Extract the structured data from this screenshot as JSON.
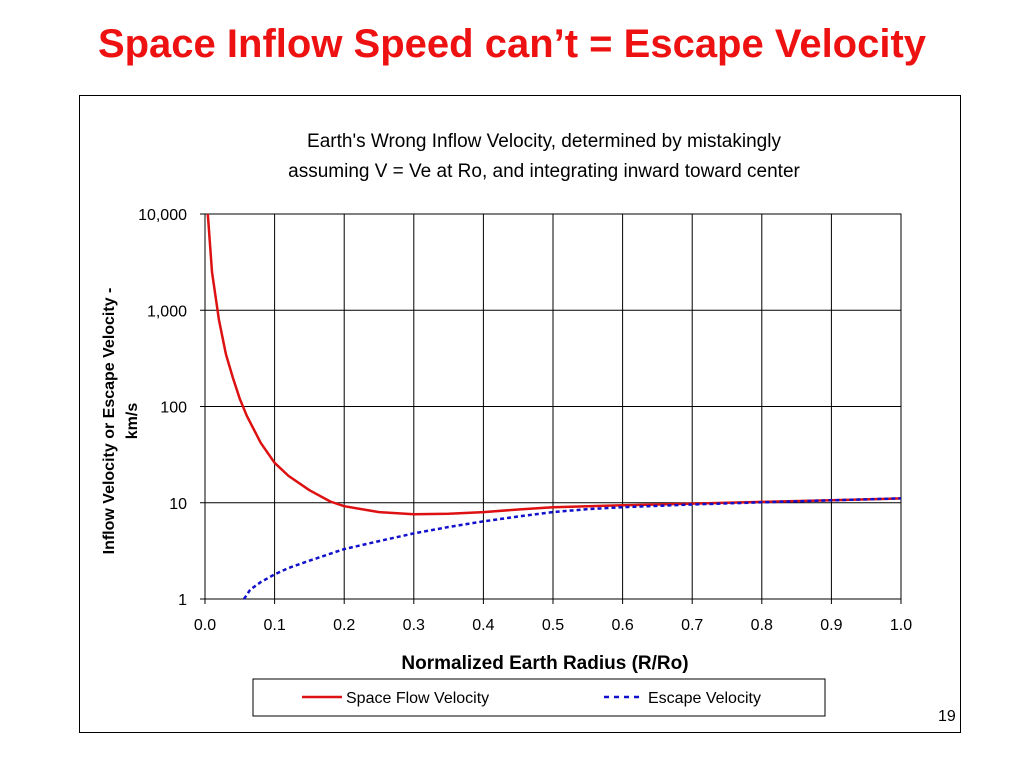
{
  "slide": {
    "title": "Space Inflow Speed can’t = Escape Velocity",
    "page_number": "19"
  },
  "colors": {
    "title": "#ee1111",
    "space_flow": "#dd1111",
    "escape": "#1111cc"
  },
  "chart_data": {
    "type": "line",
    "title": "Earth's Wrong Inflow Velocity, determined by mistakingly assuming V = Ve at Ro, and integrating inward toward center",
    "title_lines": [
      "Earth's Wrong Inflow Velocity, determined by mistakingly",
      "assuming V = Ve at Ro, and integrating inward toward center"
    ],
    "xlabel": "Normalized Earth Radius (R/Ro)",
    "ylabel": "Inflow Velocity or Escape Velocity - km/s",
    "ylabel_lines": [
      "Inflow Velocity or Escape Velocity -",
      "km/s"
    ],
    "xlim": [
      0,
      1
    ],
    "ylim": [
      1,
      10000
    ],
    "yscale": "log",
    "grid": true,
    "xticks": [
      0,
      0.1,
      0.2,
      0.3,
      0.4,
      0.5,
      0.6,
      0.7,
      0.8,
      0.9,
      1.0
    ],
    "xtick_labels": [
      "0.0",
      "0.1",
      "0.2",
      "0.3",
      "0.4",
      "0.5",
      "0.6",
      "0.7",
      "0.8",
      "0.9",
      "1.0"
    ],
    "yticks": [
      1,
      10,
      100,
      1000,
      10000
    ],
    "ytick_labels": [
      "1",
      "10",
      "100",
      "1,000",
      "10,000"
    ],
    "legend_position": "bottom",
    "series": [
      {
        "name": "Space Flow Velocity",
        "style": "solid",
        "x": [
          0.004,
          0.01,
          0.02,
          0.03,
          0.04,
          0.05,
          0.06,
          0.08,
          0.1,
          0.12,
          0.15,
          0.18,
          0.2,
          0.25,
          0.3,
          0.35,
          0.4,
          0.45,
          0.5,
          0.6,
          0.7,
          0.8,
          0.9,
          1.0
        ],
        "y": [
          10000,
          2500,
          800,
          350,
          200,
          120,
          80,
          42,
          26,
          19,
          13.5,
          10.3,
          9.2,
          8.0,
          7.6,
          7.7,
          8.0,
          8.5,
          9.0,
          9.4,
          9.8,
          10.2,
          10.6,
          11.1
        ]
      },
      {
        "name": "Escape Velocity",
        "style": "dashed",
        "x": [
          0.056,
          0.065,
          0.08,
          0.1,
          0.12,
          0.15,
          0.2,
          0.25,
          0.3,
          0.35,
          0.4,
          0.45,
          0.5,
          0.55,
          0.6,
          0.7,
          0.8,
          0.9,
          1.0
        ],
        "y": [
          1.0,
          1.25,
          1.5,
          1.8,
          2.1,
          2.5,
          3.3,
          4.0,
          4.8,
          5.6,
          6.4,
          7.2,
          8.0,
          8.6,
          9.0,
          9.6,
          10.1,
          10.6,
          11.1
        ]
      }
    ]
  }
}
